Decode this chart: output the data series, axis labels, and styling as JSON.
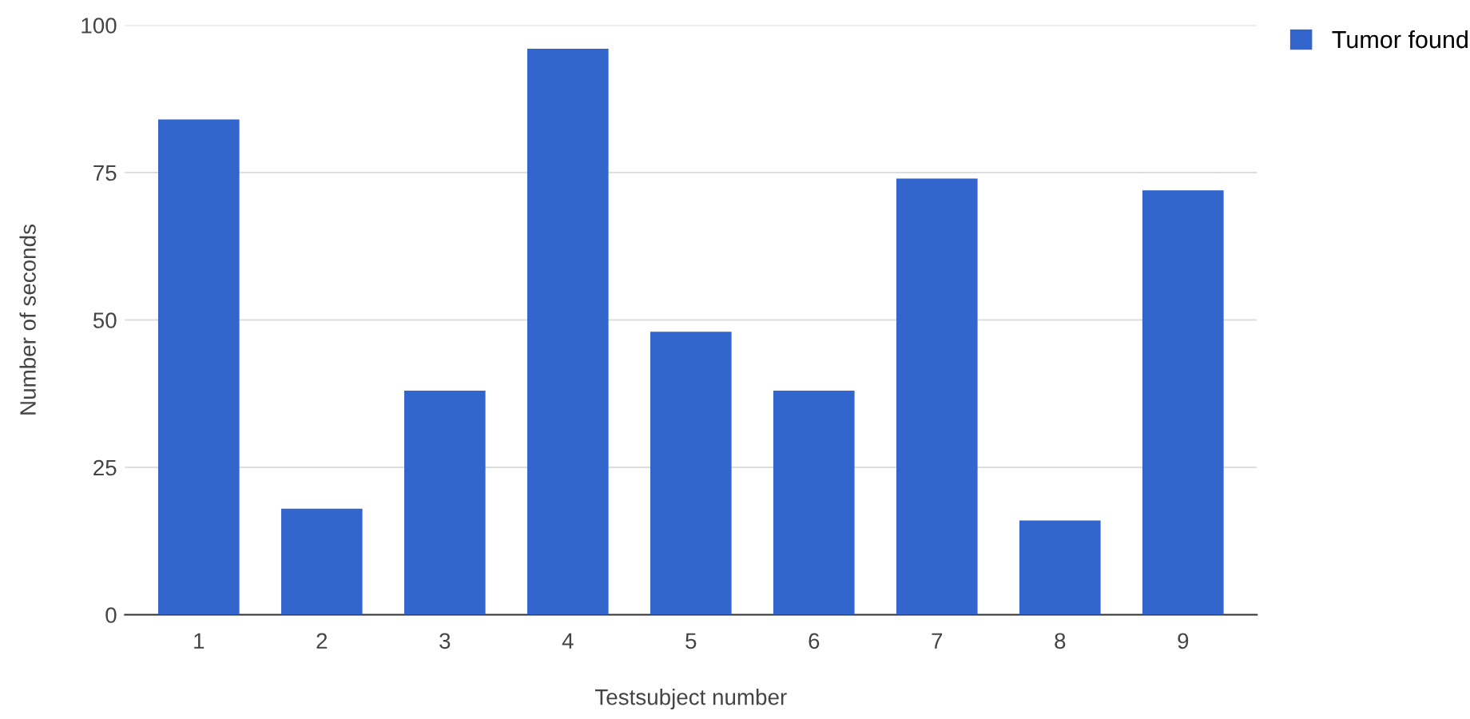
{
  "chart_data": {
    "type": "bar",
    "xlabel": "Testsubject number",
    "ylabel": "Number of seconds",
    "categories": [
      "1",
      "2",
      "3",
      "4",
      "5",
      "6",
      "7",
      "8",
      "9"
    ],
    "series": [
      {
        "name": "Tumor found",
        "color": "#3366cc",
        "values": [
          84,
          18,
          38,
          96,
          48,
          38,
          74,
          16,
          72
        ]
      }
    ],
    "ylim": [
      0,
      100
    ],
    "yticks": [
      0,
      25,
      50,
      75,
      100
    ],
    "grid": "y",
    "legend": "top right"
  }
}
